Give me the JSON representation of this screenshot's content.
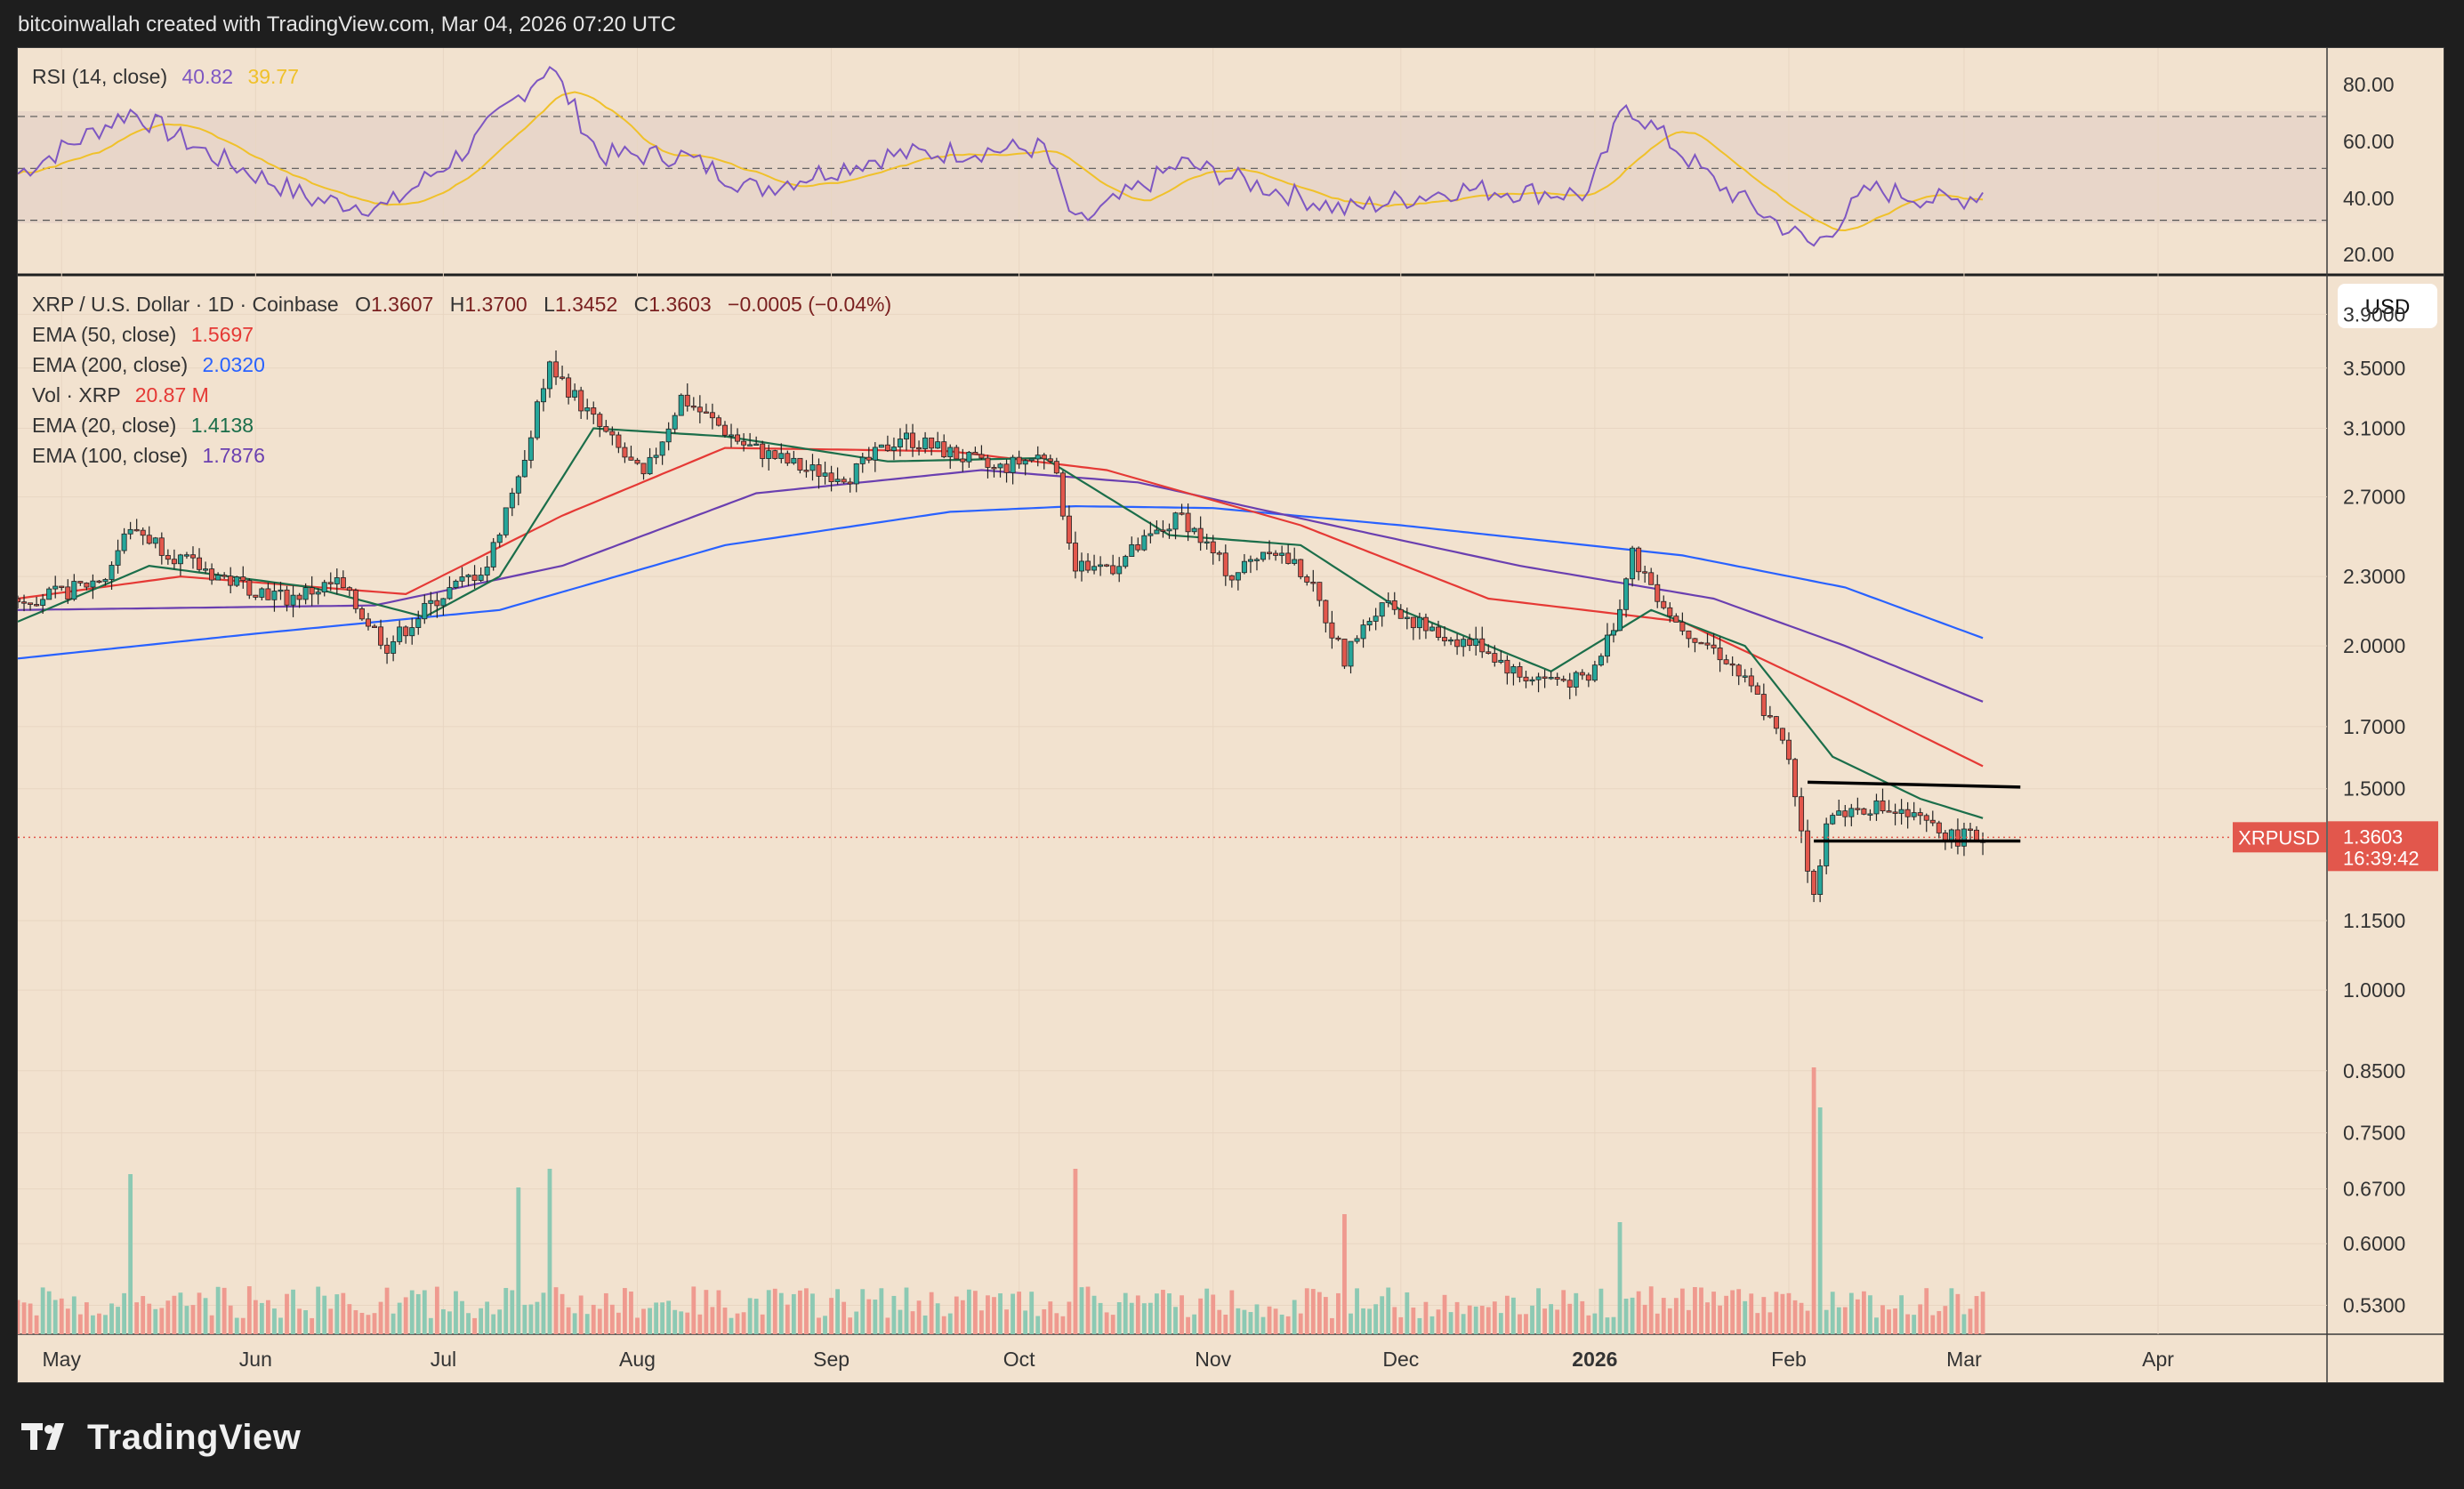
{
  "header": {
    "credit": "bitcoinwallah created with TradingView.com, Mar 04, 2026 07:20 UTC"
  },
  "footer": {
    "brand": "TradingView",
    "logo_icon": "tradingview-logo-icon"
  },
  "rsi_panel": {
    "label": "RSI (14, close)",
    "rsi_value": "40.82",
    "ma_value": "39.77",
    "scale_labels": [
      "80.00",
      "60.00",
      "40.00",
      "20.00"
    ],
    "colors": {
      "rsi": "#7e57c2",
      "ma": "#f0c12a"
    }
  },
  "legend": {
    "symbol": "XRP / U.S. Dollar · 1D · Coinbase",
    "o_label": "O",
    "o_value": "1.3607",
    "h_label": "H",
    "h_value": "1.3700",
    "l_label": "L",
    "l_value": "1.3452",
    "c_label": "C",
    "c_value": "1.3603",
    "change": "−0.0005 (−0.04%)",
    "indicators": [
      {
        "label": "EMA (50, close)",
        "value": "1.5697",
        "color": "#e53935"
      },
      {
        "label": "EMA (200, close)",
        "value": "2.0320",
        "color": "#2962ff"
      },
      {
        "label": "Vol · XRP",
        "value": "20.87 M",
        "color": "#e53935"
      },
      {
        "label": "EMA (20, close)",
        "value": "1.4138",
        "color": "#1b6e4a"
      },
      {
        "label": "EMA (100, close)",
        "value": "1.7876",
        "color": "#6a3fb0"
      }
    ]
  },
  "price_axis": {
    "currency_button": "USD",
    "labels": [
      "3.9000",
      "3.5000",
      "3.1000",
      "2.7000",
      "2.3000",
      "2.0000",
      "1.7000",
      "1.5000",
      "1.1500",
      "1.0000",
      "0.8500",
      "0.7500",
      "0.6700",
      "0.6000",
      "0.5300"
    ],
    "current_tag": {
      "symbol": "XRPUSD",
      "price": "1.3603",
      "countdown": "16:39:42",
      "color": "#e2574c"
    }
  },
  "time_axis": {
    "labels": [
      "May",
      "Jun",
      "Jul",
      "Aug",
      "Sep",
      "Oct",
      "Nov",
      "Dec",
      "2026",
      "Feb",
      "Mar",
      "Apr"
    ]
  },
  "chart_data": {
    "type": "candlestick",
    "title": "XRP / U.S. Dollar · 1D · Coinbase",
    "y_scale": "log",
    "ylim": [
      0.5,
      4.2
    ],
    "x_range": [
      "2025-04-24",
      "2026-04-28"
    ],
    "last_close": 1.3603,
    "colors": {
      "up": "#26a69a",
      "down": "#e2574c"
    },
    "close_path": [
      [
        "2025-04-24",
        2.2
      ],
      [
        "2025-05-01",
        2.22
      ],
      [
        "2025-05-08",
        2.3
      ],
      [
        "2025-05-12",
        2.55
      ],
      [
        "2025-05-20",
        2.38
      ],
      [
        "2025-05-28",
        2.28
      ],
      [
        "2025-06-06",
        2.2
      ],
      [
        "2025-06-14",
        2.27
      ],
      [
        "2025-06-22",
        2.0
      ],
      [
        "2025-06-30",
        2.2
      ],
      [
        "2025-07-08",
        2.35
      ],
      [
        "2025-07-14",
        2.95
      ],
      [
        "2025-07-18",
        3.52
      ],
      [
        "2025-07-25",
        3.15
      ],
      [
        "2025-08-02",
        2.8
      ],
      [
        "2025-08-08",
        3.3
      ],
      [
        "2025-08-18",
        3.0
      ],
      [
        "2025-08-28",
        2.85
      ],
      [
        "2025-09-04",
        2.82
      ],
      [
        "2025-09-12",
        3.05
      ],
      [
        "2025-09-20",
        2.95
      ],
      [
        "2025-09-27",
        2.85
      ],
      [
        "2025-10-06",
        2.95
      ],
      [
        "2025-10-10",
        2.35
      ],
      [
        "2025-10-16",
        2.35
      ],
      [
        "2025-10-27",
        2.6
      ],
      [
        "2025-11-04",
        2.3
      ],
      [
        "2025-11-10",
        2.45
      ],
      [
        "2025-11-16",
        2.3
      ],
      [
        "2025-11-22",
        1.95
      ],
      [
        "2025-11-28",
        2.2
      ],
      [
        "2025-12-06",
        2.05
      ],
      [
        "2025-12-14",
        2.0
      ],
      [
        "2025-12-20",
        1.88
      ],
      [
        "2025-12-31",
        1.86
      ],
      [
        "2026-01-05",
        2.15
      ],
      [
        "2026-01-07",
        2.4
      ],
      [
        "2026-01-14",
        2.1
      ],
      [
        "2026-01-22",
        1.95
      ],
      [
        "2026-01-27",
        1.8
      ],
      [
        "2026-02-01",
        1.6
      ],
      [
        "2026-02-05",
        1.2
      ],
      [
        "2026-02-07",
        1.42
      ],
      [
        "2026-02-14",
        1.45
      ],
      [
        "2026-02-20",
        1.42
      ],
      [
        "2026-02-27",
        1.36
      ],
      [
        "2026-03-04",
        1.3603
      ]
    ],
    "ema_20": [
      [
        "2025-04-24",
        2.1
      ],
      [
        "2025-05-15",
        2.35
      ],
      [
        "2025-06-10",
        2.25
      ],
      [
        "2025-06-28",
        2.12
      ],
      [
        "2025-07-10",
        2.3
      ],
      [
        "2025-07-25",
        3.1
      ],
      [
        "2025-08-15",
        3.05
      ],
      [
        "2025-09-10",
        2.9
      ],
      [
        "2025-10-05",
        2.92
      ],
      [
        "2025-10-25",
        2.5
      ],
      [
        "2025-11-15",
        2.45
      ],
      [
        "2025-12-01",
        2.15
      ],
      [
        "2025-12-25",
        1.9
      ],
      [
        "2026-01-10",
        2.15
      ],
      [
        "2026-01-25",
        2.0
      ],
      [
        "2026-02-08",
        1.6
      ],
      [
        "2026-02-22",
        1.47
      ],
      [
        "2026-03-04",
        1.4138
      ]
    ],
    "ema_50": [
      [
        "2025-04-24",
        2.2
      ],
      [
        "2025-05-20",
        2.3
      ],
      [
        "2025-06-25",
        2.22
      ],
      [
        "2025-07-20",
        2.6
      ],
      [
        "2025-08-15",
        2.98
      ],
      [
        "2025-09-20",
        2.96
      ],
      [
        "2025-10-15",
        2.85
      ],
      [
        "2025-11-15",
        2.55
      ],
      [
        "2025-12-15",
        2.2
      ],
      [
        "2026-01-15",
        2.1
      ],
      [
        "2026-02-10",
        1.8
      ],
      [
        "2026-03-04",
        1.5697
      ]
    ],
    "ema_100": [
      [
        "2025-04-24",
        2.15
      ],
      [
        "2025-06-20",
        2.17
      ],
      [
        "2025-07-20",
        2.35
      ],
      [
        "2025-08-20",
        2.72
      ],
      [
        "2025-09-25",
        2.85
      ],
      [
        "2025-10-20",
        2.78
      ],
      [
        "2025-11-20",
        2.55
      ],
      [
        "2025-12-20",
        2.35
      ],
      [
        "2026-01-20",
        2.2
      ],
      [
        "2026-02-10",
        2.0
      ],
      [
        "2026-03-04",
        1.7876
      ]
    ],
    "ema_200": [
      [
        "2025-04-24",
        1.95
      ],
      [
        "2025-06-01",
        2.05
      ],
      [
        "2025-07-10",
        2.15
      ],
      [
        "2025-08-15",
        2.45
      ],
      [
        "2025-09-20",
        2.62
      ],
      [
        "2025-10-10",
        2.65
      ],
      [
        "2025-11-01",
        2.64
      ],
      [
        "2025-12-01",
        2.55
      ],
      [
        "2026-01-15",
        2.4
      ],
      [
        "2026-02-10",
        2.25
      ],
      [
        "2026-03-04",
        2.032
      ]
    ],
    "trendlines": [
      {
        "from": [
          "2026-02-04",
          1.52
        ],
        "to": [
          "2026-03-10",
          1.505
        ],
        "color": "#000000"
      },
      {
        "from": [
          "2026-02-05",
          1.35
        ],
        "to": [
          "2026-03-10",
          1.35
        ],
        "color": "#000000"
      }
    ],
    "volume_spikes": [
      [
        "2025-05-12",
        0.6
      ],
      [
        "2025-07-13",
        0.55
      ],
      [
        "2025-07-18",
        0.62
      ],
      [
        "2025-10-10",
        0.62
      ],
      [
        "2025-11-22",
        0.45
      ],
      [
        "2026-01-05",
        0.42
      ],
      [
        "2026-02-05",
        1.0
      ],
      [
        "2026-02-06",
        0.85
      ]
    ],
    "rsi": [
      [
        "2025-04-24",
        48
      ],
      [
        "2025-05-12",
        72
      ],
      [
        "2025-05-25",
        55
      ],
      [
        "2025-06-10",
        38
      ],
      [
        "2025-06-22",
        35
      ],
      [
        "2025-07-05",
        58
      ],
      [
        "2025-07-18",
        90
      ],
      [
        "2025-07-26",
        55
      ],
      [
        "2025-08-08",
        55
      ],
      [
        "2025-08-20",
        42
      ],
      [
        "2025-09-10",
        55
      ],
      [
        "2025-10-05",
        58
      ],
      [
        "2025-10-10",
        28
      ],
      [
        "2025-10-27",
        52
      ],
      [
        "2025-11-22",
        34
      ],
      [
        "2025-12-10",
        42
      ],
      [
        "2025-12-31",
        40
      ],
      [
        "2026-01-06",
        75
      ],
      [
        "2026-01-20",
        45
      ],
      [
        "2026-02-05",
        20
      ],
      [
        "2026-02-14",
        42
      ],
      [
        "2026-02-27",
        37
      ],
      [
        "2026-03-04",
        40.82
      ]
    ],
    "rsi_levels": [
      70,
      50,
      30
    ],
    "rsi_ylim": [
      10,
      95
    ]
  }
}
